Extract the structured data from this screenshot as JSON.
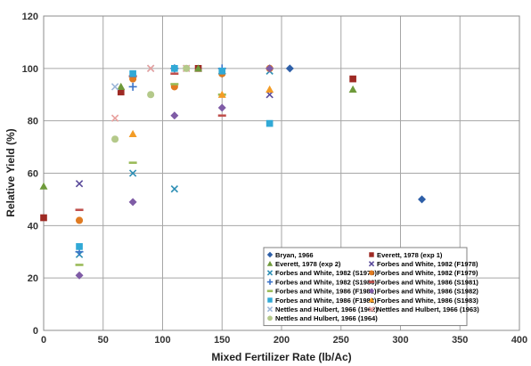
{
  "chart_data": {
    "type": "scatter",
    "title": "",
    "xlabel": "Mixed Fertilizer Rate (lb/Ac)",
    "ylabel": "Relative Yield (%)",
    "xlim": [
      0,
      400
    ],
    "ylim": [
      0,
      120
    ],
    "xticks": [
      0,
      50,
      100,
      150,
      200,
      250,
      300,
      350,
      400
    ],
    "yticks": [
      0,
      20,
      40,
      60,
      80,
      100,
      120
    ],
    "grid": true,
    "legend_position": "bottom-right",
    "series": [
      {
        "name": "Bryan, 1966",
        "marker": "diamond",
        "color": "#2e5fa8",
        "points": [
          [
            150,
            98
          ],
          [
            190,
            100
          ],
          [
            207,
            100
          ],
          [
            318,
            50
          ]
        ]
      },
      {
        "name": "Everett, 1978 (exp 1)",
        "marker": "square",
        "color": "#9e2a24",
        "points": [
          [
            0,
            43
          ],
          [
            65,
            91
          ],
          [
            130,
            100
          ],
          [
            260,
            96
          ]
        ]
      },
      {
        "name": "Everett, 1978 (exp 2)",
        "marker": "triangle",
        "color": "#6e9a3a",
        "points": [
          [
            0,
            55
          ],
          [
            65,
            93
          ],
          [
            130,
            100
          ],
          [
            260,
            92
          ]
        ]
      },
      {
        "name": "Forbes and White, 1982 (F1978)",
        "marker": "x",
        "color": "#5a4a9a",
        "points": [
          [
            30,
            56
          ],
          [
            190,
            90
          ]
        ]
      },
      {
        "name": "Forbes and White, 1982 (S1979)",
        "marker": "x",
        "color": "#2e8fb5",
        "points": [
          [
            30,
            29
          ],
          [
            75,
            60
          ],
          [
            110,
            54
          ],
          [
            150,
            99
          ],
          [
            190,
            99
          ]
        ]
      },
      {
        "name": "Forbes and White, 1982 (F1979)",
        "marker": "circle",
        "color": "#e07b22",
        "points": [
          [
            30,
            42
          ],
          [
            75,
            96
          ],
          [
            110,
            93
          ],
          [
            150,
            98
          ],
          [
            190,
            100
          ]
        ]
      },
      {
        "name": "Forbes and White, 1982 (S1980)",
        "marker": "plus",
        "color": "#3a73c8",
        "points": [
          [
            30,
            30
          ],
          [
            75,
            93
          ],
          [
            110,
            100
          ],
          [
            150,
            100
          ]
        ]
      },
      {
        "name": "Forbes and White, 1986 (S1981)",
        "marker": "dash",
        "color": "#c0504d",
        "points": [
          [
            30,
            46
          ],
          [
            75,
            97
          ],
          [
            110,
            98
          ],
          [
            150,
            82
          ]
        ]
      },
      {
        "name": "Forbes and White, 1986 (F1981)",
        "marker": "dash",
        "color": "#9bbb59",
        "points": [
          [
            30,
            25
          ],
          [
            75,
            64
          ],
          [
            110,
            94
          ],
          [
            150,
            90
          ]
        ]
      },
      {
        "name": "Forbes and White, 1986 (S1982)",
        "marker": "diamond",
        "color": "#7f5ca6",
        "points": [
          [
            30,
            21
          ],
          [
            75,
            49
          ],
          [
            110,
            82
          ],
          [
            150,
            85
          ],
          [
            190,
            100
          ]
        ]
      },
      {
        "name": "Forbes and White, 1986 (F1982)",
        "marker": "square",
        "color": "#31a9d6",
        "points": [
          [
            30,
            32
          ],
          [
            75,
            98
          ],
          [
            110,
            100
          ],
          [
            150,
            99
          ],
          [
            190,
            79
          ]
        ]
      },
      {
        "name": "Forbes and White, 1986 (S1983)",
        "marker": "triangle",
        "color": "#f39c26",
        "points": [
          [
            75,
            75
          ],
          [
            150,
            90
          ],
          [
            190,
            92
          ]
        ]
      },
      {
        "name": "Nettles and Hulbert, 1966 (1962)",
        "marker": "x",
        "color": "#9cb6d8",
        "points": [
          [
            60,
            93
          ],
          [
            90,
            100
          ],
          [
            120,
            100
          ]
        ]
      },
      {
        "name": "Nettles and Hulbert, 1966 (1963)",
        "marker": "x",
        "color": "#e8a09d",
        "points": [
          [
            60,
            81
          ],
          [
            90,
            100
          ],
          [
            120,
            100
          ]
        ]
      },
      {
        "name": "Nettles and Hulbert, 1966 (1964)",
        "marker": "circle",
        "color": "#b4c98a",
        "points": [
          [
            60,
            73
          ],
          [
            90,
            90
          ],
          [
            120,
            100
          ]
        ]
      }
    ]
  }
}
